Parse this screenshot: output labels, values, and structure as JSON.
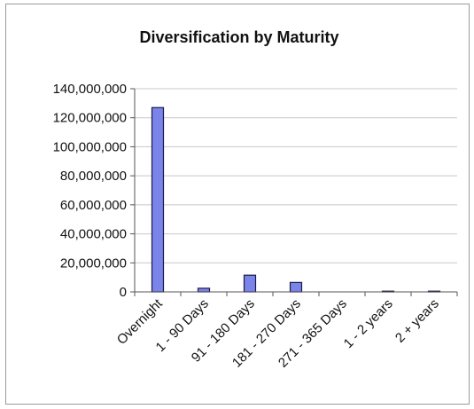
{
  "chart_data": {
    "type": "bar",
    "title": "Diversification by Maturity",
    "xlabel": "",
    "ylabel": "",
    "categories": [
      "Overnight",
      "1 - 90 Days",
      "91 - 180 Days",
      "181 - 270 Days",
      "271 - 365 Days",
      "1 - 2 years",
      "2 + years"
    ],
    "values": [
      127000000,
      2500000,
      11500000,
      6500000,
      0,
      500000,
      500000
    ],
    "ylim": [
      0,
      140000000
    ],
    "yticks": [
      0,
      20000000,
      40000000,
      60000000,
      80000000,
      100000000,
      120000000,
      140000000
    ],
    "ytick_labels": [
      "0",
      "20,000,000",
      "40,000,000",
      "60,000,000",
      "80,000,000",
      "100,000,000",
      "120,000,000",
      "140,000,000"
    ],
    "grid": true,
    "legend": "none",
    "bar_color": "#7b84e8",
    "bar_edge_color": "#1a1a4a"
  }
}
